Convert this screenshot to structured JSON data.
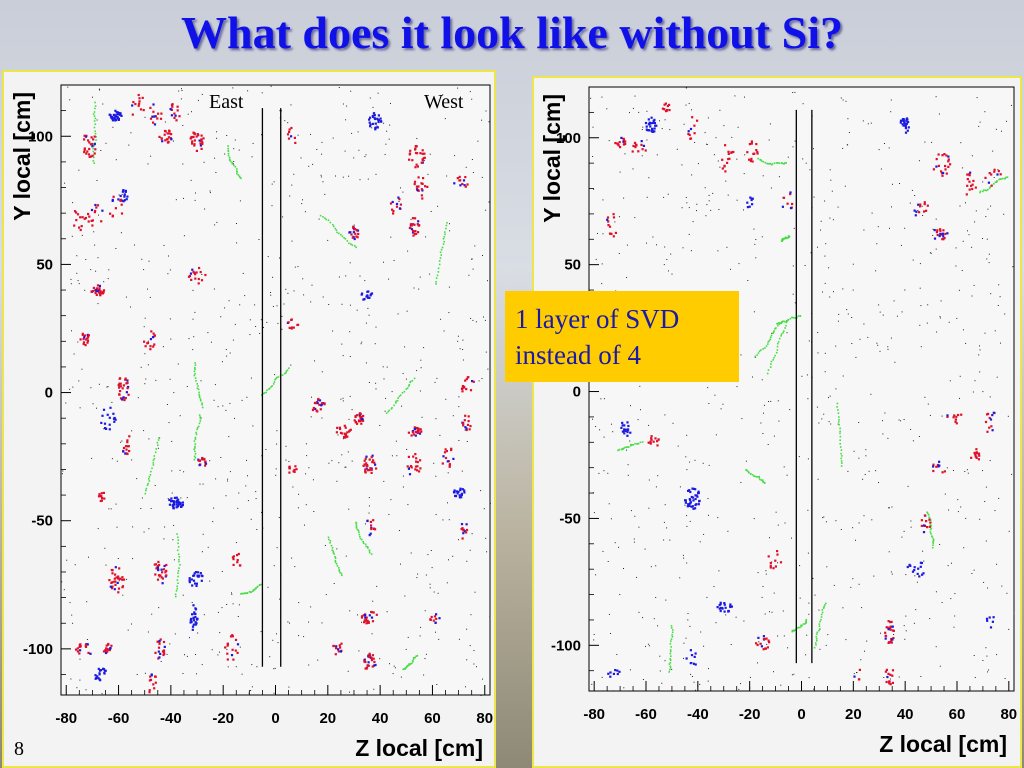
{
  "title": "What does it look like without Si?",
  "slide_number": "8",
  "callout": {
    "line1": "1 layer of SVD",
    "line2": "instead of 4"
  },
  "colors": {
    "title": "#1010e8",
    "blue": "#1a1ae0",
    "red": "#e0102a",
    "green": "#44dd44",
    "noise": "#222222",
    "callout_bg": "#ffcc00",
    "panel_border": "#ece64a"
  },
  "chart_data": [
    {
      "type": "scatter",
      "title": "",
      "xlabel": "Z local [cm]",
      "ylabel": "Y local [cm]",
      "xlim": [
        -82,
        82
      ],
      "ylim": [
        -118,
        120
      ],
      "xticks": [
        "-80",
        "-60",
        "-40",
        "-20",
        "0",
        "20",
        "40",
        "60",
        "80"
      ],
      "yticks": [
        "100",
        "50",
        "0",
        "-50",
        "-100"
      ],
      "region_labels": [
        "East",
        "West"
      ],
      "boundary_lines_z": [
        -5,
        2
      ],
      "clusters": [
        {
          "x": -61,
          "y": 108,
          "c": "b",
          "n": 30
        },
        {
          "x": -71,
          "y": 97,
          "c": "r",
          "n": 25
        },
        {
          "x": -53,
          "y": 112,
          "c": "r",
          "n": 12
        },
        {
          "x": -46,
          "y": 108,
          "c": "r",
          "n": 14
        },
        {
          "x": -39,
          "y": 109,
          "c": "r",
          "n": 14
        },
        {
          "x": -42,
          "y": 100,
          "c": "r",
          "n": 22
        },
        {
          "x": -30,
          "y": 98,
          "c": "r",
          "n": 26
        },
        {
          "x": -58,
          "y": 77,
          "c": "b",
          "n": 14
        },
        {
          "x": -61,
          "y": 72,
          "c": "r",
          "n": 12
        },
        {
          "x": -69,
          "y": 69,
          "c": "r",
          "n": 14
        },
        {
          "x": -75,
          "y": 67,
          "c": "r",
          "n": 12
        },
        {
          "x": -68,
          "y": 40,
          "c": "r",
          "n": 28
        },
        {
          "x": -30,
          "y": 46,
          "c": "r",
          "n": 16
        },
        {
          "x": -73,
          "y": 21,
          "c": "r",
          "n": 16
        },
        {
          "x": -48,
          "y": 20,
          "c": "r",
          "n": 14
        },
        {
          "x": -58,
          "y": 2,
          "c": "r",
          "n": 28
        },
        {
          "x": -64,
          "y": -10,
          "c": "b",
          "n": 16
        },
        {
          "x": -57,
          "y": -20,
          "c": "r",
          "n": 14
        },
        {
          "x": -28,
          "y": -27,
          "c": "r",
          "n": 16
        },
        {
          "x": -67,
          "y": -41,
          "c": "r",
          "n": 10
        },
        {
          "x": -38,
          "y": -43,
          "c": "b",
          "n": 40
        },
        {
          "x": -61,
          "y": -73,
          "c": "r",
          "n": 30
        },
        {
          "x": -44,
          "y": -70,
          "c": "r",
          "n": 26
        },
        {
          "x": -30,
          "y": -73,
          "c": "b",
          "n": 22
        },
        {
          "x": -31,
          "y": -88,
          "c": "b",
          "n": 24
        },
        {
          "x": -15,
          "y": -66,
          "c": "r",
          "n": 10
        },
        {
          "x": -73,
          "y": -100,
          "c": "r",
          "n": 18
        },
        {
          "x": -64,
          "y": -100,
          "c": "r",
          "n": 16
        },
        {
          "x": -44,
          "y": -100,
          "c": "r",
          "n": 18
        },
        {
          "x": -17,
          "y": -100,
          "c": "r",
          "n": 16
        },
        {
          "x": -67,
          "y": -110,
          "c": "b",
          "n": 18
        },
        {
          "x": -47,
          "y": -114,
          "c": "r",
          "n": 12
        },
        {
          "x": 6,
          "y": 100,
          "c": "r",
          "n": 8
        },
        {
          "x": 38,
          "y": 106,
          "c": "b",
          "n": 26
        },
        {
          "x": 54,
          "y": 92,
          "c": "r",
          "n": 24
        },
        {
          "x": 56,
          "y": 80,
          "c": "r",
          "n": 18
        },
        {
          "x": 71,
          "y": 82,
          "c": "r",
          "n": 12
        },
        {
          "x": 46,
          "y": 73,
          "c": "r",
          "n": 12
        },
        {
          "x": 53,
          "y": 65,
          "c": "r",
          "n": 24
        },
        {
          "x": 30,
          "y": 62,
          "c": "r",
          "n": 20
        },
        {
          "x": 35,
          "y": 38,
          "c": "b",
          "n": 14
        },
        {
          "x": 7,
          "y": 27,
          "c": "r",
          "n": 10
        },
        {
          "x": 16,
          "y": -5,
          "c": "r",
          "n": 22
        },
        {
          "x": 26,
          "y": -15,
          "c": "r",
          "n": 20
        },
        {
          "x": 32,
          "y": -10,
          "c": "r",
          "n": 26
        },
        {
          "x": 53,
          "y": -15,
          "c": "r",
          "n": 22
        },
        {
          "x": 73,
          "y": 3,
          "c": "r",
          "n": 14
        },
        {
          "x": 73,
          "y": -12,
          "c": "r",
          "n": 14
        },
        {
          "x": 36,
          "y": -28,
          "c": "r",
          "n": 28
        },
        {
          "x": 53,
          "y": -28,
          "c": "r",
          "n": 18
        },
        {
          "x": 66,
          "y": -26,
          "c": "r",
          "n": 14
        },
        {
          "x": 7,
          "y": -30,
          "c": "r",
          "n": 10
        },
        {
          "x": 70,
          "y": -39,
          "c": "b",
          "n": 18
        },
        {
          "x": 36,
          "y": -52,
          "c": "r",
          "n": 12
        },
        {
          "x": 72,
          "y": -54,
          "c": "r",
          "n": 12
        },
        {
          "x": 36,
          "y": -88,
          "c": "r",
          "n": 24
        },
        {
          "x": 61,
          "y": -88,
          "c": "r",
          "n": 10
        },
        {
          "x": 36,
          "y": -105,
          "c": "r",
          "n": 26
        },
        {
          "x": 23,
          "y": -100,
          "c": "r",
          "n": 12
        }
      ]
    },
    {
      "type": "scatter",
      "title": "",
      "xlabel": "Z local [cm]",
      "ylabel": "Y local [cm]",
      "xlim": [
        -82,
        82
      ],
      "ylim": [
        -118,
        120
      ],
      "xticks": [
        "-80",
        "-60",
        "-40",
        "-20",
        "0",
        "20",
        "40",
        "60",
        "80"
      ],
      "yticks": [
        "100",
        "50",
        "0",
        "-50",
        "-100"
      ],
      "region_labels": [],
      "boundary_lines_z": [
        -2,
        4
      ],
      "clusters": [
        {
          "x": -58,
          "y": 105,
          "c": "b",
          "n": 26
        },
        {
          "x": -52,
          "y": 112,
          "c": "r",
          "n": 10
        },
        {
          "x": -42,
          "y": 104,
          "c": "r",
          "n": 10
        },
        {
          "x": -70,
          "y": 98,
          "c": "r",
          "n": 16
        },
        {
          "x": -63,
          "y": 96,
          "c": "r",
          "n": 12
        },
        {
          "x": -29,
          "y": 92,
          "c": "r",
          "n": 14
        },
        {
          "x": -19,
          "y": 94,
          "c": "r",
          "n": 14
        },
        {
          "x": -73,
          "y": 66,
          "c": "r",
          "n": 12
        },
        {
          "x": -20,
          "y": 74,
          "c": "b",
          "n": 8
        },
        {
          "x": -5,
          "y": 74,
          "c": "r",
          "n": 8
        },
        {
          "x": -57,
          "y": -20,
          "c": "r",
          "n": 12
        },
        {
          "x": -68,
          "y": -15,
          "c": "b",
          "n": 18
        },
        {
          "x": -42,
          "y": -42,
          "c": "b",
          "n": 36
        },
        {
          "x": -30,
          "y": -85,
          "c": "b",
          "n": 22
        },
        {
          "x": -10,
          "y": -66,
          "c": "r",
          "n": 10
        },
        {
          "x": -15,
          "y": -99,
          "c": "r",
          "n": 16
        },
        {
          "x": -72,
          "y": -112,
          "c": "b",
          "n": 8
        },
        {
          "x": -42,
          "y": -104,
          "c": "b",
          "n": 8
        },
        {
          "x": 40,
          "y": 105,
          "c": "b",
          "n": 24
        },
        {
          "x": 54,
          "y": 90,
          "c": "r",
          "n": 20
        },
        {
          "x": 65,
          "y": 82,
          "c": "r",
          "n": 14
        },
        {
          "x": 74,
          "y": 84,
          "c": "r",
          "n": 10
        },
        {
          "x": 46,
          "y": 72,
          "c": "r",
          "n": 12
        },
        {
          "x": 53,
          "y": 62,
          "c": "r",
          "n": 20
        },
        {
          "x": 73,
          "y": -12,
          "c": "r",
          "n": 12
        },
        {
          "x": 59,
          "y": -10,
          "c": "r",
          "n": 10
        },
        {
          "x": 53,
          "y": -30,
          "c": "r",
          "n": 10
        },
        {
          "x": 67,
          "y": -26,
          "c": "r",
          "n": 14
        },
        {
          "x": 48,
          "y": -52,
          "c": "r",
          "n": 12
        },
        {
          "x": 44,
          "y": -70,
          "c": "b",
          "n": 14
        },
        {
          "x": 34,
          "y": -95,
          "c": "r",
          "n": 28
        },
        {
          "x": 34,
          "y": -112,
          "c": "r",
          "n": 14
        },
        {
          "x": 73,
          "y": -90,
          "c": "b",
          "n": 6
        },
        {
          "x": 22,
          "y": -112,
          "c": "r",
          "n": 4
        }
      ]
    }
  ]
}
